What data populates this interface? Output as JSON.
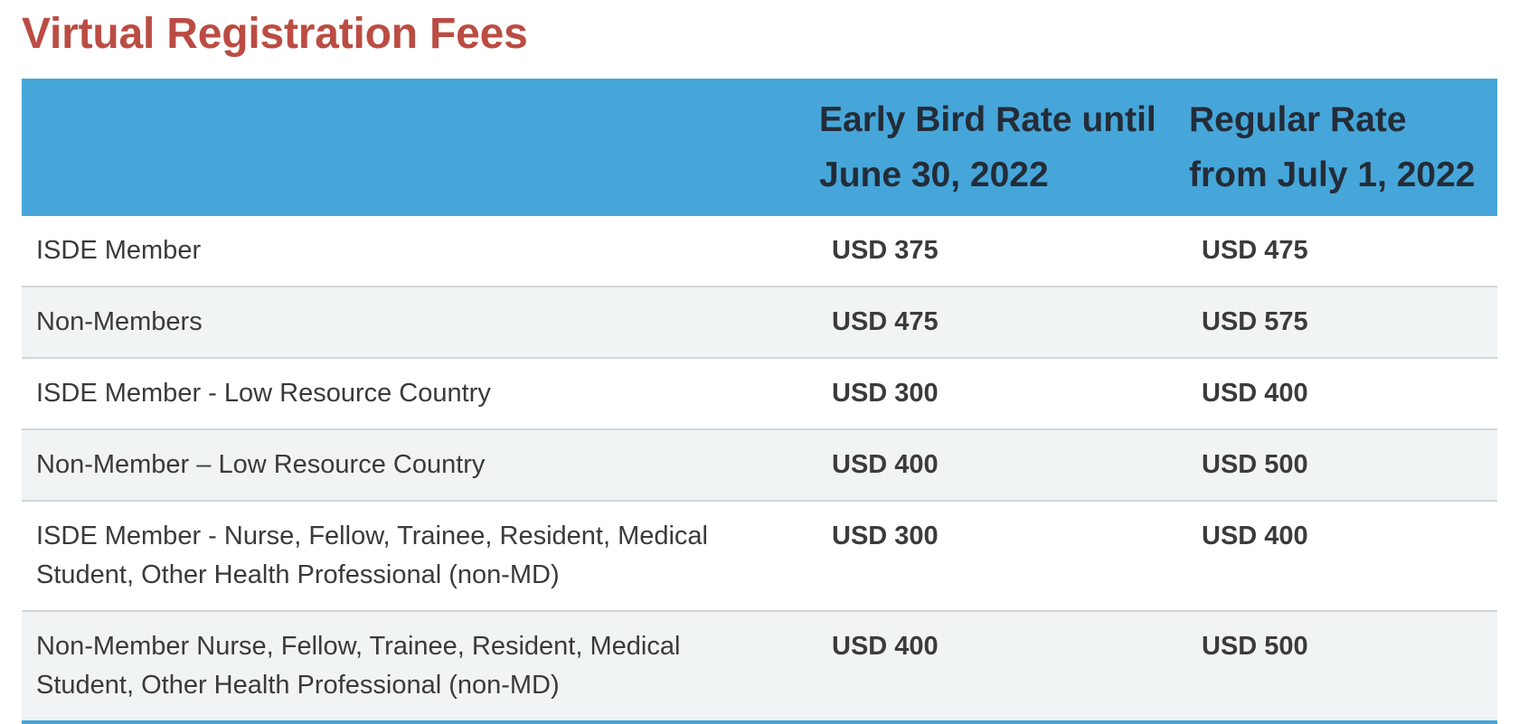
{
  "page": {
    "title": "Virtual Registration Fees"
  },
  "table": {
    "headers": {
      "category": "",
      "early_bird": "Early Bird Rate until June 30, 2022",
      "regular": "Regular Rate from July 1, 2022"
    },
    "rows": [
      {
        "category": "ISDE Member",
        "early_bird": "USD 375",
        "regular": "USD 475"
      },
      {
        "category": "Non-Members",
        "early_bird": "USD 475",
        "regular": "USD 575"
      },
      {
        "category": "ISDE Member - Low Resource Country",
        "early_bird": "USD 300",
        "regular": "USD 400"
      },
      {
        "category": "Non-Member – Low Resource Country",
        "early_bird": "USD 400",
        "regular": "USD 500"
      },
      {
        "category": "ISDE Member - Nurse, Fellow, Trainee, Resident, Medical Student, Other Health Professional (non-MD)",
        "early_bird": "USD 300",
        "regular": "USD 400"
      },
      {
        "category": "Non-Member Nurse, Fellow, Trainee, Resident, Medical Student, Other Health Professional (non-MD)",
        "early_bird": "USD 400",
        "regular": "USD 500"
      }
    ]
  },
  "colors": {
    "title": "#bb4c43",
    "header_background": "#46a6d9",
    "header_text": "#232c38",
    "row_alt_background": "#f1f4f5",
    "bottom_border": "#44a5d8"
  }
}
